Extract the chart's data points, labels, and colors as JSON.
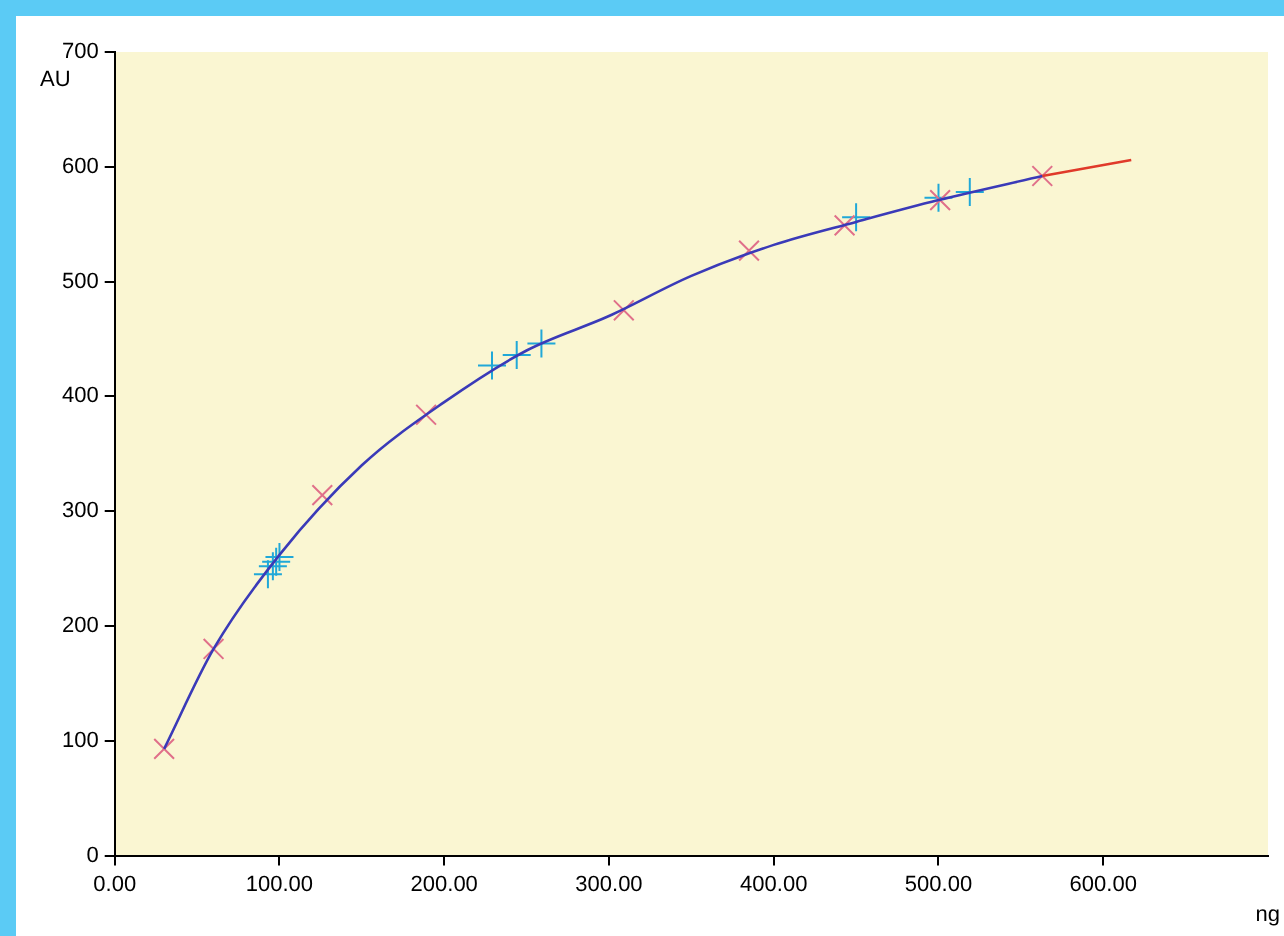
{
  "chart_data": {
    "type": "scatter",
    "xlabel": "ng",
    "ylabel": "AU",
    "xlim": [
      0,
      700
    ],
    "ylim": [
      0,
      700
    ],
    "xticks": [
      {
        "value": 0,
        "label": "0.00"
      },
      {
        "value": 100,
        "label": "100.00"
      },
      {
        "value": 200,
        "label": "200.00"
      },
      {
        "value": 300,
        "label": "300.00"
      },
      {
        "value": 400,
        "label": "400.00"
      },
      {
        "value": 500,
        "label": "500.00"
      },
      {
        "value": 600,
        "label": "600.00"
      }
    ],
    "yticks": [
      0,
      100,
      200,
      300,
      400,
      500,
      600,
      700
    ],
    "grid": false,
    "legend": false,
    "series": [
      {
        "type": "line",
        "color": "#3a3ab8",
        "marker": "none",
        "x": [
          30,
          60,
          100,
          150,
          200,
          250,
          300,
          350,
          400,
          450,
          500,
          563
        ],
        "values": [
          93,
          180,
          262,
          340,
          395,
          440,
          470,
          505,
          532,
          552,
          571,
          592
        ]
      },
      {
        "type": "line",
        "color": "#e03a2a",
        "marker": "none",
        "x": [
          563,
          590,
          617
        ],
        "values": [
          592,
          599,
          606
        ]
      },
      {
        "color": "#e0708a",
        "marker": "cross",
        "x": [
          30,
          60,
          126,
          189,
          309,
          385,
          443,
          501,
          563
        ],
        "values": [
          93,
          180,
          314,
          384,
          475,
          527,
          549,
          571,
          592
        ]
      },
      {
        "color": "#20a8d8",
        "marker": "plus",
        "x": [
          93,
          96,
          98,
          100,
          229,
          244,
          259,
          450,
          500,
          519
        ],
        "values": [
          245,
          252,
          256,
          260,
          427,
          436,
          446,
          556,
          573,
          578
        ]
      }
    ]
  }
}
